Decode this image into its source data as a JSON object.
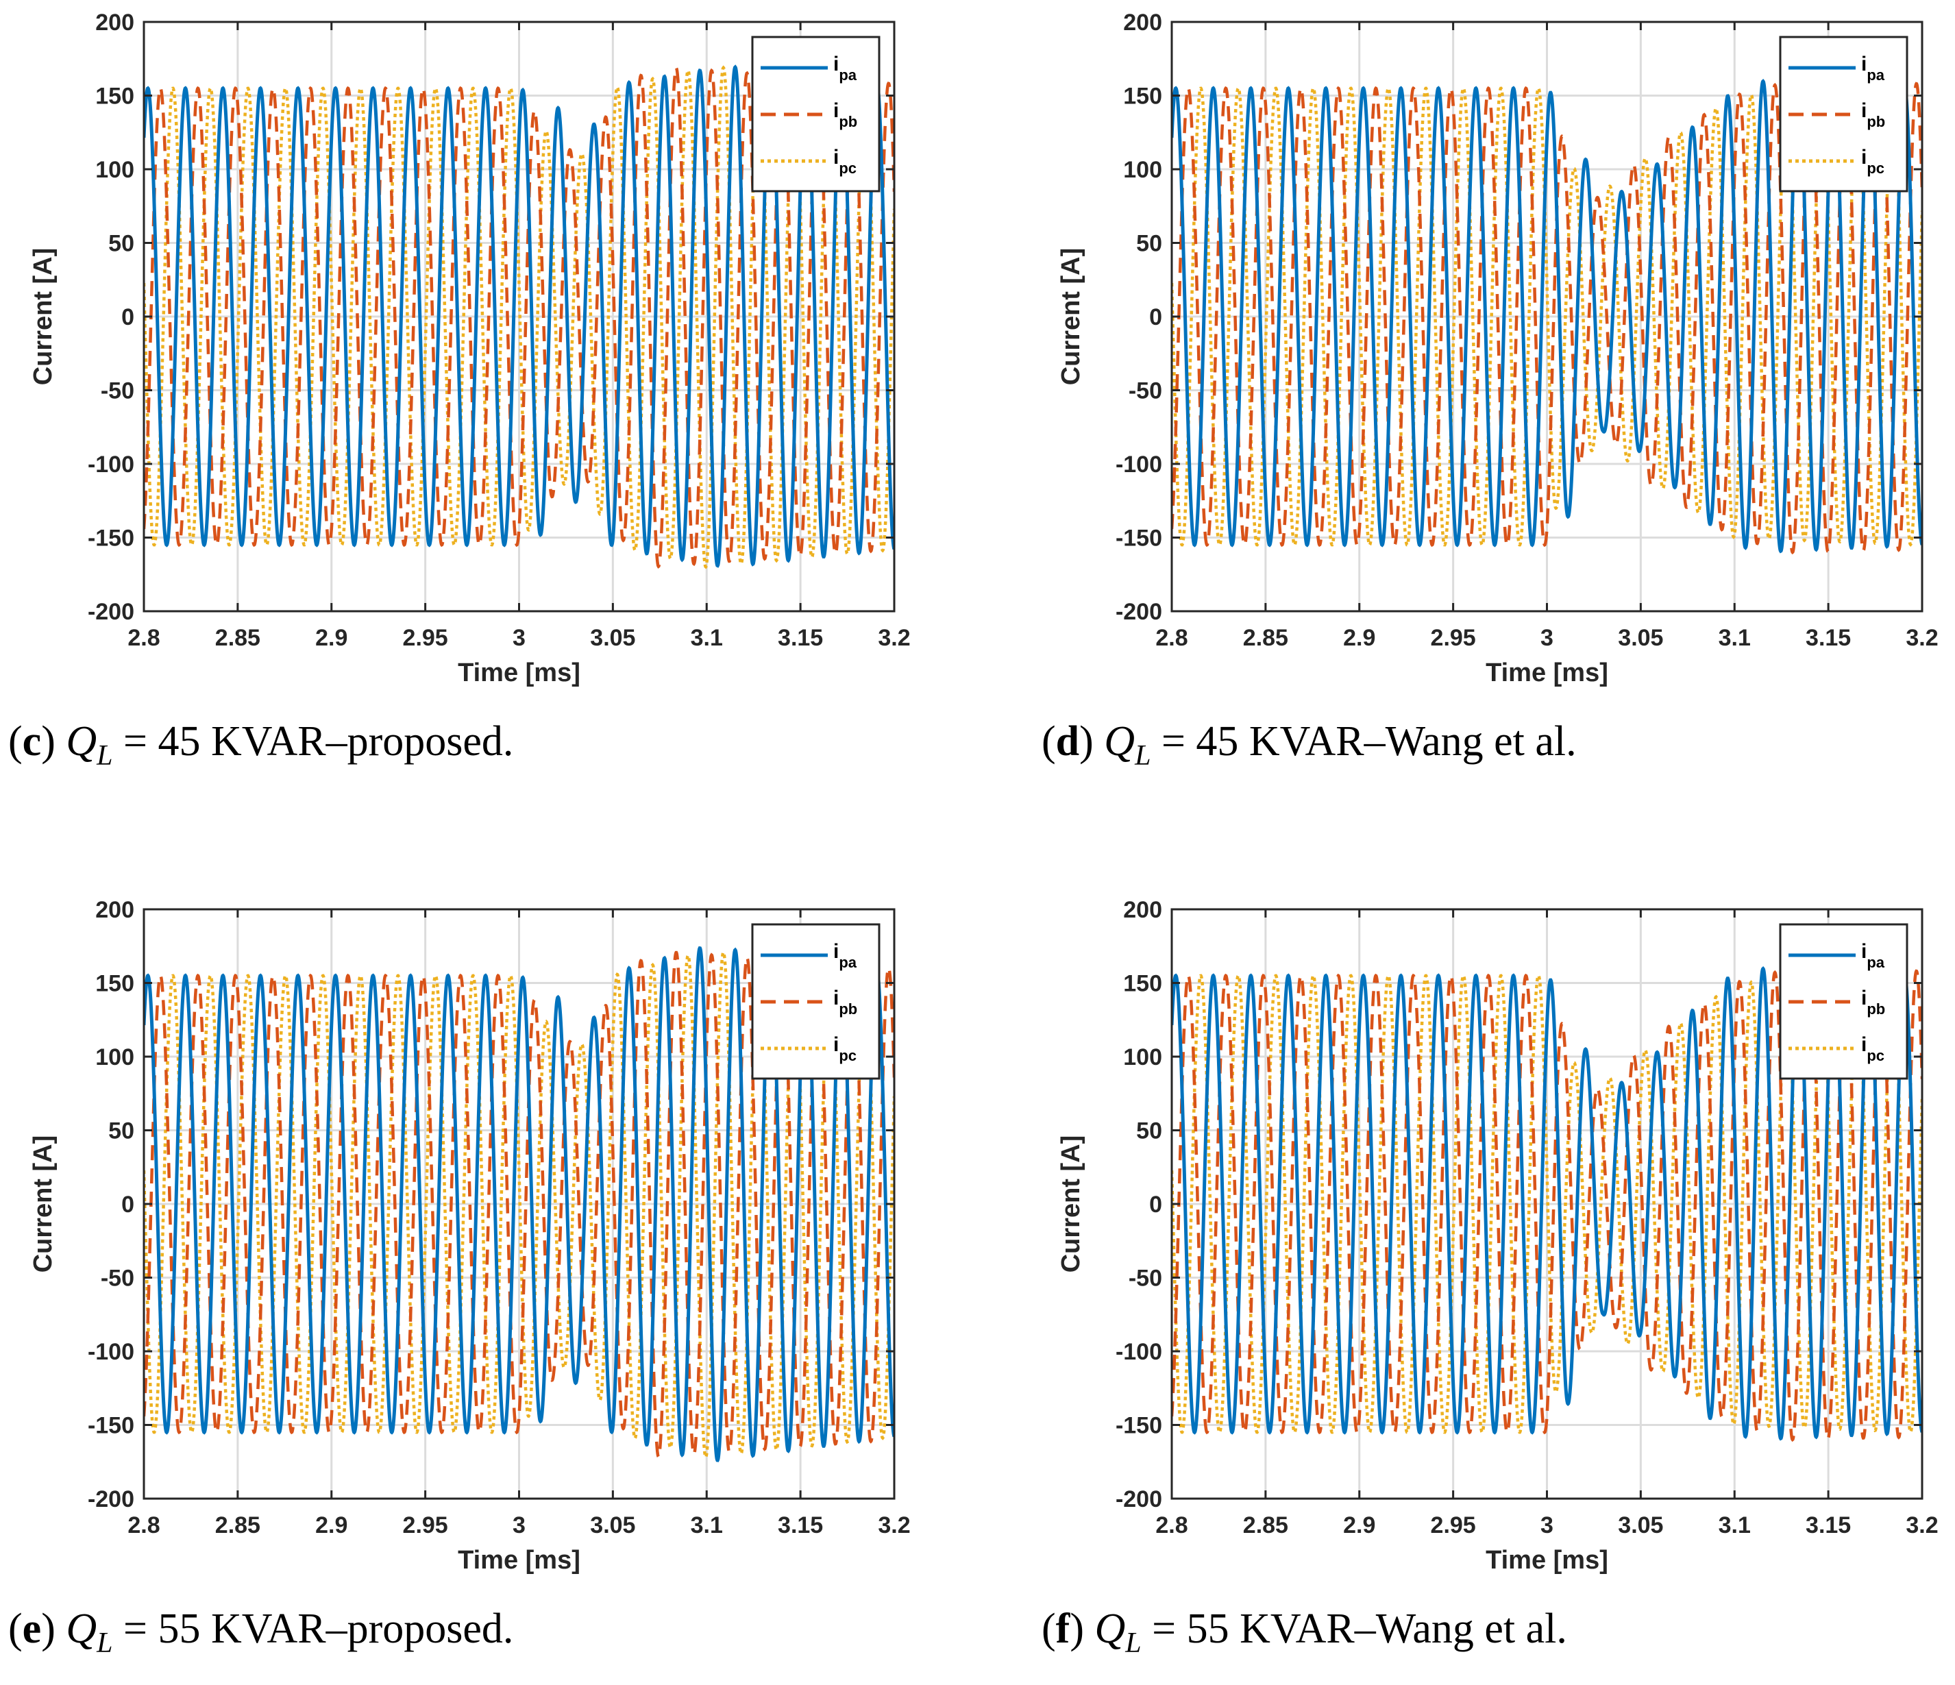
{
  "colors": {
    "ipa": "#0072BD",
    "ipb": "#D95319",
    "ipc": "#EDB120",
    "grid": "#dcdcdc",
    "axis": "#262626"
  },
  "chart_data": [
    {
      "id": "c",
      "type": "line",
      "caption": {
        "letter": "c",
        "symbol": "Q",
        "subscript": "L",
        "rest": " = 45 KVAR–proposed."
      },
      "xlabel": "Time [ms]",
      "ylabel": "Current [A]",
      "xlim": [
        2.8,
        3.2
      ],
      "ylim": [
        -200,
        200
      ],
      "xticks": [
        "2.8",
        "2.85",
        "2.9",
        "2.95",
        "3",
        "3.05",
        "3.1",
        "3.15",
        "3.2"
      ],
      "yticks": [
        "200",
        "150",
        "100",
        "50",
        "0",
        "-50",
        "-100",
        "-150",
        "-200"
      ],
      "legend": {
        "placement": "top-right",
        "entries": [
          {
            "base": "i",
            "sub": "pa"
          },
          {
            "base": "i",
            "sub": "pb"
          },
          {
            "base": "i",
            "sub": "pc"
          }
        ]
      },
      "series": [
        {
          "name": "ipa",
          "style": "solid",
          "amplitude_ms_A": [
            [
              2.8,
              155
            ],
            [
              3.0,
              155
            ],
            [
              3.02,
              143
            ],
            [
              3.035,
              118
            ],
            [
              3.05,
              157
            ],
            [
              3.11,
              170
            ],
            [
              3.2,
              158
            ]
          ]
        },
        {
          "name": "ipb",
          "style": "dashed",
          "amplitude_ms_A": [
            [
              2.8,
              155
            ],
            [
              3.0,
              155
            ],
            [
              3.02,
              118
            ],
            [
              3.035,
              108
            ],
            [
              3.05,
              145
            ],
            [
              3.07,
              170
            ],
            [
              3.2,
              158
            ]
          ]
        },
        {
          "name": "ipc",
          "style": "dotted",
          "amplitude_ms_A": [
            [
              2.8,
              155
            ],
            [
              3.0,
              155
            ],
            [
              3.02,
              115
            ],
            [
              3.035,
              110
            ],
            [
              3.05,
              155
            ],
            [
              3.1,
              170
            ],
            [
              3.2,
              158
            ]
          ]
        }
      ],
      "frequency_cycles_per_ms": 50,
      "disturbance_at_ms": 3.0
    },
    {
      "id": "d",
      "type": "line",
      "caption": {
        "letter": "d",
        "symbol": "Q",
        "subscript": "L",
        "rest": " = 45 KVAR–Wang et al."
      },
      "xlabel": "Time [ms]",
      "ylabel": "Current [A]",
      "xlim": [
        2.8,
        3.2
      ],
      "ylim": [
        -200,
        200
      ],
      "xticks": [
        "2.8",
        "2.85",
        "2.9",
        "2.95",
        "3",
        "3.05",
        "3.1",
        "3.15",
        "3.2"
      ],
      "yticks": [
        "200",
        "150",
        "100",
        "50",
        "0",
        "-50",
        "-100",
        "-150",
        "-200"
      ],
      "legend": {
        "placement": "top-right",
        "entries": [
          {
            "base": "i",
            "sub": "pa"
          },
          {
            "base": "i",
            "sub": "pb"
          },
          {
            "base": "i",
            "sub": "pc"
          }
        ]
      },
      "series": [
        {
          "name": "ipa",
          "style": "solid",
          "amplitude_ms_A": [
            [
              2.8,
              155
            ],
            [
              3.0,
              155
            ],
            [
              3.01,
              140
            ],
            [
              3.03,
              78
            ],
            [
              3.05,
              92
            ],
            [
              3.09,
              145
            ],
            [
              3.11,
              160
            ],
            [
              3.2,
              155
            ]
          ]
        },
        {
          "name": "ipb",
          "style": "dashed",
          "amplitude_ms_A": [
            [
              2.8,
              155
            ],
            [
              3.0,
              155
            ],
            [
              3.01,
              115
            ],
            [
              3.03,
              75
            ],
            [
              3.05,
              110
            ],
            [
              3.1,
              150
            ],
            [
              3.13,
              160
            ],
            [
              3.2,
              158
            ]
          ]
        },
        {
          "name": "ipc",
          "style": "dotted",
          "amplitude_ms_A": [
            [
              2.8,
              155
            ],
            [
              3.0,
              155
            ],
            [
              3.01,
              105
            ],
            [
              3.03,
              85
            ],
            [
              3.06,
              115
            ],
            [
              3.1,
              150
            ],
            [
              3.2,
              155
            ]
          ]
        }
      ],
      "frequency_cycles_per_ms": 50,
      "disturbance_at_ms": 3.0
    },
    {
      "id": "e",
      "type": "line",
      "caption": {
        "letter": "e",
        "symbol": "Q",
        "subscript": "L",
        "rest": " = 55 KVAR–proposed."
      },
      "xlabel": "Time [ms]",
      "ylabel": "Current [A]",
      "xlim": [
        2.8,
        3.2
      ],
      "ylim": [
        -200,
        200
      ],
      "xticks": [
        "2.8",
        "2.85",
        "2.9",
        "2.95",
        "3",
        "3.05",
        "3.1",
        "3.15",
        "3.2"
      ],
      "yticks": [
        "200",
        "150",
        "100",
        "50",
        "0",
        "-50",
        "-100",
        "-150",
        "-200"
      ],
      "legend": {
        "placement": "top-right",
        "entries": [
          {
            "base": "i",
            "sub": "pa"
          },
          {
            "base": "i",
            "sub": "pb"
          },
          {
            "base": "i",
            "sub": "pc"
          }
        ]
      },
      "series": [
        {
          "name": "ipa",
          "style": "solid",
          "amplitude_ms_A": [
            [
              2.8,
              155
            ],
            [
              3.0,
              155
            ],
            [
              3.02,
              142
            ],
            [
              3.035,
              112
            ],
            [
              3.05,
              157
            ],
            [
              3.1,
              175
            ],
            [
              3.2,
              158
            ]
          ]
        },
        {
          "name": "ipb",
          "style": "dashed",
          "amplitude_ms_A": [
            [
              2.8,
              155
            ],
            [
              3.0,
              155
            ],
            [
              3.02,
              115
            ],
            [
              3.035,
              105
            ],
            [
              3.05,
              145
            ],
            [
              3.07,
              172
            ],
            [
              3.2,
              160
            ]
          ]
        },
        {
          "name": "ipc",
          "style": "dotted",
          "amplitude_ms_A": [
            [
              2.8,
              155
            ],
            [
              3.0,
              155
            ],
            [
              3.02,
              112
            ],
            [
              3.035,
              108
            ],
            [
              3.05,
              155
            ],
            [
              3.1,
              172
            ],
            [
              3.2,
              158
            ]
          ]
        }
      ],
      "frequency_cycles_per_ms": 50,
      "disturbance_at_ms": 3.0
    },
    {
      "id": "f",
      "type": "line",
      "caption": {
        "letter": "f",
        "symbol": "Q",
        "subscript": "L",
        "rest": " = 55 KVAR–Wang et al."
      },
      "xlabel": "Time [ms]",
      "ylabel": "Current [A]",
      "xlim": [
        2.8,
        3.2
      ],
      "ylim": [
        -200,
        200
      ],
      "xticks": [
        "2.8",
        "2.85",
        "2.9",
        "2.95",
        "3",
        "3.05",
        "3.1",
        "3.15",
        "3.2"
      ],
      "yticks": [
        "200",
        "150",
        "100",
        "50",
        "0",
        "-50",
        "-100",
        "-150",
        "-200"
      ],
      "legend": {
        "placement": "top-right",
        "entries": [
          {
            "base": "i",
            "sub": "pa"
          },
          {
            "base": "i",
            "sub": "pb"
          },
          {
            "base": "i",
            "sub": "pc"
          }
        ]
      },
      "series": [
        {
          "name": "ipa",
          "style": "solid",
          "amplitude_ms_A": [
            [
              2.8,
              155
            ],
            [
              3.0,
              155
            ],
            [
              3.01,
              140
            ],
            [
              3.03,
              75
            ],
            [
              3.05,
              90
            ],
            [
              3.09,
              150
            ],
            [
              3.11,
              160
            ],
            [
              3.2,
              155
            ]
          ]
        },
        {
          "name": "ipb",
          "style": "dashed",
          "amplitude_ms_A": [
            [
              2.8,
              155
            ],
            [
              3.0,
              155
            ],
            [
              3.01,
              115
            ],
            [
              3.03,
              72
            ],
            [
              3.05,
              108
            ],
            [
              3.1,
              150
            ],
            [
              3.13,
              160
            ],
            [
              3.2,
              158
            ]
          ]
        },
        {
          "name": "ipc",
          "style": "dotted",
          "amplitude_ms_A": [
            [
              2.8,
              155
            ],
            [
              3.0,
              155
            ],
            [
              3.01,
              100
            ],
            [
              3.03,
              82
            ],
            [
              3.06,
              112
            ],
            [
              3.1,
              150
            ],
            [
              3.2,
              155
            ]
          ]
        }
      ],
      "frequency_cycles_per_ms": 50,
      "disturbance_at_ms": 3.0
    }
  ]
}
